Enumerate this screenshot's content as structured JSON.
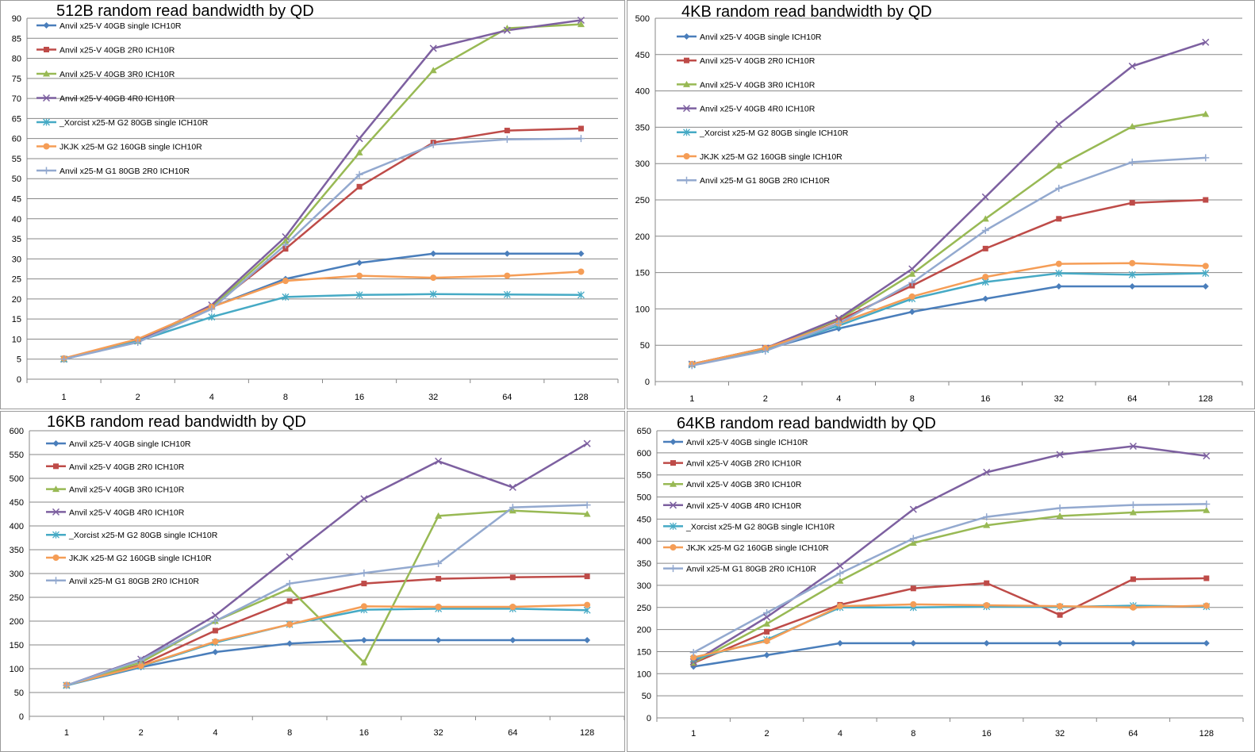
{
  "colors": {
    "single": "#4A7EBB",
    "r2": "#BE4B48",
    "r3": "#98B954",
    "r4": "#7D60A0",
    "xorcist": "#46AAC5",
    "jkjk": "#F59D56",
    "g1": "#93A9CF"
  },
  "chart_data": [
    {
      "type": "line",
      "title": "512B random read bandwidth by QD",
      "categories": [
        "1",
        "2",
        "4",
        "8",
        "16",
        "32",
        "64",
        "128"
      ],
      "ylim": [
        0,
        90
      ],
      "yticks": [
        0,
        5,
        10,
        15,
        20,
        25,
        30,
        35,
        40,
        45,
        50,
        55,
        60,
        65,
        70,
        75,
        80,
        85,
        90
      ],
      "grid": true,
      "legend_position": "top-left",
      "series": [
        {
          "name": "Anvil x25-V 40GB single ICH10R",
          "marker": "diamond",
          "color": "#4A7EBB",
          "values": [
            5,
            9.5,
            18,
            25,
            29,
            31.3,
            31.3,
            31.3
          ]
        },
        {
          "name": "Anvil x25-V 40GB 2R0 ICH10R",
          "marker": "square",
          "color": "#BE4B48",
          "values": [
            5,
            9.5,
            18,
            32.5,
            48,
            59,
            62,
            62.5
          ]
        },
        {
          "name": "Anvil x25-V 40GB 3R0 ICH10R",
          "marker": "triangle",
          "color": "#98B954",
          "values": [
            5,
            9.5,
            18,
            34.5,
            56.5,
            77,
            87.5,
            88.5
          ]
        },
        {
          "name": "Anvil x25-V 40GB 4R0 ICH10R",
          "marker": "x",
          "color": "#7D60A0",
          "values": [
            5,
            9.5,
            18.5,
            35.5,
            60,
            82.5,
            87,
            89.5
          ]
        },
        {
          "name": "_Xorcist x25-M G2 80GB single ICH10R",
          "marker": "star",
          "color": "#46AAC5",
          "values": [
            5,
            9.5,
            15.5,
            20.5,
            21,
            21.2,
            21.1,
            21
          ]
        },
        {
          "name": "JKJK x25-M G2 160GB single ICH10R",
          "marker": "circle",
          "color": "#F59D56",
          "values": [
            5.2,
            10,
            18,
            24.5,
            25.8,
            25.3,
            25.8,
            26.8
          ]
        },
        {
          "name": "Anvil x25-M G1 80GB 2R0 ICH10R",
          "marker": "plus",
          "color": "#93A9CF",
          "values": [
            5,
            9.2,
            17.5,
            33.5,
            51,
            58.5,
            59.8,
            60
          ]
        }
      ]
    },
    {
      "type": "line",
      "title": "4KB random read bandwidth by QD",
      "categories": [
        "1",
        "2",
        "4",
        "8",
        "16",
        "32",
        "64",
        "128"
      ],
      "ylim": [
        0,
        500
      ],
      "yticks": [
        0,
        50,
        100,
        150,
        200,
        250,
        300,
        350,
        400,
        450,
        500
      ],
      "grid": true,
      "legend_position": "top-left",
      "series": [
        {
          "name": "Anvil x25-V 40GB single ICH10R",
          "marker": "diamond",
          "color": "#4A7EBB",
          "values": [
            23,
            44,
            73,
            96,
            114,
            131,
            131,
            131
          ]
        },
        {
          "name": "Anvil x25-V 40GB 2R0 ICH10R",
          "marker": "square",
          "color": "#BE4B48",
          "values": [
            24,
            46,
            84,
            132,
            183,
            224,
            246,
            250
          ]
        },
        {
          "name": "Anvil x25-V 40GB 3R0 ICH10R",
          "marker": "triangle",
          "color": "#98B954",
          "values": [
            24,
            46,
            85,
            148,
            224,
            297,
            351,
            368
          ]
        },
        {
          "name": "Anvil x25-V 40GB 4R0 ICH10R",
          "marker": "x",
          "color": "#7D60A0",
          "values": [
            24,
            46,
            87,
            155,
            254,
            354,
            434,
            467
          ]
        },
        {
          "name": "_Xorcist x25-M G2 80GB single ICH10R",
          "marker": "star",
          "color": "#46AAC5",
          "values": [
            23,
            44,
            77,
            114,
            137,
            149,
            147,
            149
          ]
        },
        {
          "name": "JKJK x25-M G2 160GB single ICH10R",
          "marker": "circle",
          "color": "#F59D56",
          "values": [
            24,
            46,
            80,
            117,
            144,
            162,
            163,
            159
          ]
        },
        {
          "name": "Anvil x25-M G1 80GB 2R0 ICH10R",
          "marker": "plus",
          "color": "#93A9CF",
          "values": [
            22,
            42,
            80,
            136,
            208,
            266,
            302,
            308
          ]
        }
      ]
    },
    {
      "type": "line",
      "title": "16KB random read bandwidth by QD",
      "categories": [
        "1",
        "2",
        "4",
        "8",
        "16",
        "32",
        "64",
        "128"
      ],
      "ylim": [
        0,
        600
      ],
      "yticks": [
        0,
        50,
        100,
        150,
        200,
        250,
        300,
        350,
        400,
        450,
        500,
        550,
        600
      ],
      "grid": true,
      "legend_position": "top-left",
      "series": [
        {
          "name": "Anvil x25-V 40GB single ICH10R",
          "marker": "diamond",
          "color": "#4A7EBB",
          "values": [
            65,
            103,
            135,
            153,
            160,
            160,
            160,
            160
          ]
        },
        {
          "name": "Anvil x25-V 40GB 2R0 ICH10R",
          "marker": "square",
          "color": "#BE4B48",
          "values": [
            65,
            108,
            180,
            242,
            279,
            289,
            292,
            294
          ]
        },
        {
          "name": "Anvil x25-V 40GB 3R0 ICH10R",
          "marker": "triangle",
          "color": "#98B954",
          "values": [
            65,
            113,
            200,
            268,
            113,
            421,
            432,
            425
          ]
        },
        {
          "name": "Anvil x25-V 40GB 4R0 ICH10R",
          "marker": "x",
          "color": "#7D60A0",
          "values": [
            65,
            120,
            212,
            335,
            457,
            536,
            481,
            573
          ]
        },
        {
          "name": "_Xorcist x25-M G2 80GB single ICH10R",
          "marker": "star",
          "color": "#46AAC5",
          "values": [
            65,
            105,
            155,
            193,
            224,
            226,
            226,
            223
          ]
        },
        {
          "name": "JKJK x25-M G2 160GB single ICH10R",
          "marker": "circle",
          "color": "#F59D56",
          "values": [
            66,
            106,
            157,
            193,
            231,
            230,
            230,
            234
          ]
        },
        {
          "name": "Anvil x25-M G1 80GB 2R0 ICH10R",
          "marker": "plus",
          "color": "#93A9CF",
          "values": [
            65,
            118,
            200,
            279,
            301,
            321,
            439,
            444
          ]
        }
      ]
    },
    {
      "type": "line",
      "title": "64KB random read bandwidth by QD",
      "categories": [
        "1",
        "2",
        "4",
        "8",
        "16",
        "32",
        "64",
        "128"
      ],
      "ylim": [
        0,
        650
      ],
      "yticks": [
        0,
        50,
        100,
        150,
        200,
        250,
        300,
        350,
        400,
        450,
        500,
        550,
        600,
        650
      ],
      "grid": true,
      "legend_position": "top-left",
      "series": [
        {
          "name": "Anvil x25-V 40GB single ICH10R",
          "marker": "diamond",
          "color": "#4A7EBB",
          "values": [
            116,
            142,
            169,
            169,
            169,
            169,
            169,
            169
          ]
        },
        {
          "name": "Anvil x25-V 40GB 2R0 ICH10R",
          "marker": "square",
          "color": "#BE4B48",
          "values": [
            124,
            195,
            256,
            293,
            305,
            233,
            314,
            316
          ]
        },
        {
          "name": "Anvil x25-V 40GB 3R0 ICH10R",
          "marker": "triangle",
          "color": "#98B954",
          "values": [
            125,
            213,
            310,
            396,
            436,
            457,
            465,
            470
          ]
        },
        {
          "name": "Anvil x25-V 40GB 4R0 ICH10R",
          "marker": "x",
          "color": "#7D60A0",
          "values": [
            127,
            228,
            344,
            472,
            556,
            596,
            615,
            593
          ]
        },
        {
          "name": "_Xorcist x25-M G2 80GB single ICH10R",
          "marker": "star",
          "color": "#46AAC5",
          "values": [
            133,
            177,
            250,
            250,
            252,
            251,
            254,
            252
          ]
        },
        {
          "name": "JKJK x25-M G2 160GB single ICH10R",
          "marker": "circle",
          "color": "#F59D56",
          "values": [
            137,
            174,
            253,
            257,
            255,
            253,
            250,
            254
          ]
        },
        {
          "name": "Anvil x25-M G1 80GB 2R0 ICH10R",
          "marker": "plus",
          "color": "#93A9CF",
          "values": [
            148,
            238,
            327,
            406,
            455,
            475,
            482,
            484
          ]
        }
      ]
    }
  ]
}
